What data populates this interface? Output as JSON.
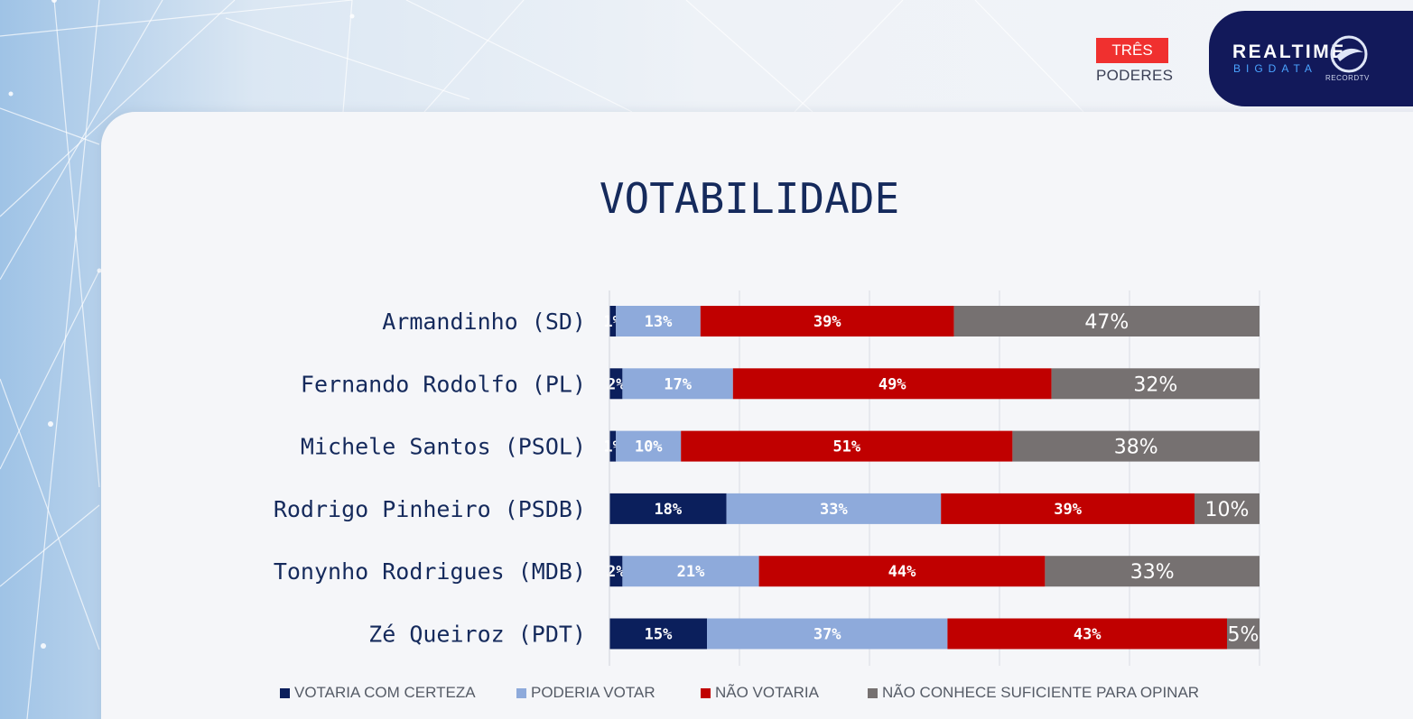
{
  "header": {
    "badge_top": "TRÊS",
    "badge_bottom": "PODERES",
    "brand_name": "REALTIME",
    "brand_sub": "BIGDATA",
    "brand_network": "RECORDTV"
  },
  "colors": {
    "votaria": "#0b1f5c",
    "poderia": "#8eaadb",
    "nao_votaria": "#c00000",
    "nao_conhece": "#767171"
  },
  "chart_data": {
    "type": "bar",
    "orientation": "horizontal",
    "stacked": true,
    "title": "VOTABILIDADE",
    "categories": [
      "Armandinho (SD)",
      "Fernando Rodolfo (PL)",
      "Michele Santos (PSOL)",
      "Rodrigo Pinheiro (PSDB)",
      "Tonynho Rodrigues (MDB)",
      "Zé Queiroz (PDT)"
    ],
    "series": [
      {
        "name": "VOTARIA COM CERTEZA",
        "values": [
          1,
          2,
          1,
          18,
          2,
          15
        ]
      },
      {
        "name": "PODERIA VOTAR",
        "values": [
          13,
          17,
          10,
          33,
          21,
          37
        ]
      },
      {
        "name": "NÃO VOTARIA",
        "values": [
          39,
          49,
          51,
          39,
          44,
          43
        ]
      },
      {
        "name": "NÃO CONHECE SUFICIENTE PARA OPINAR",
        "values": [
          47,
          32,
          38,
          10,
          33,
          5
        ]
      }
    ],
    "value_suffix": "%",
    "xlim": [
      0,
      100
    ],
    "grid": true,
    "legend_position": "bottom"
  }
}
